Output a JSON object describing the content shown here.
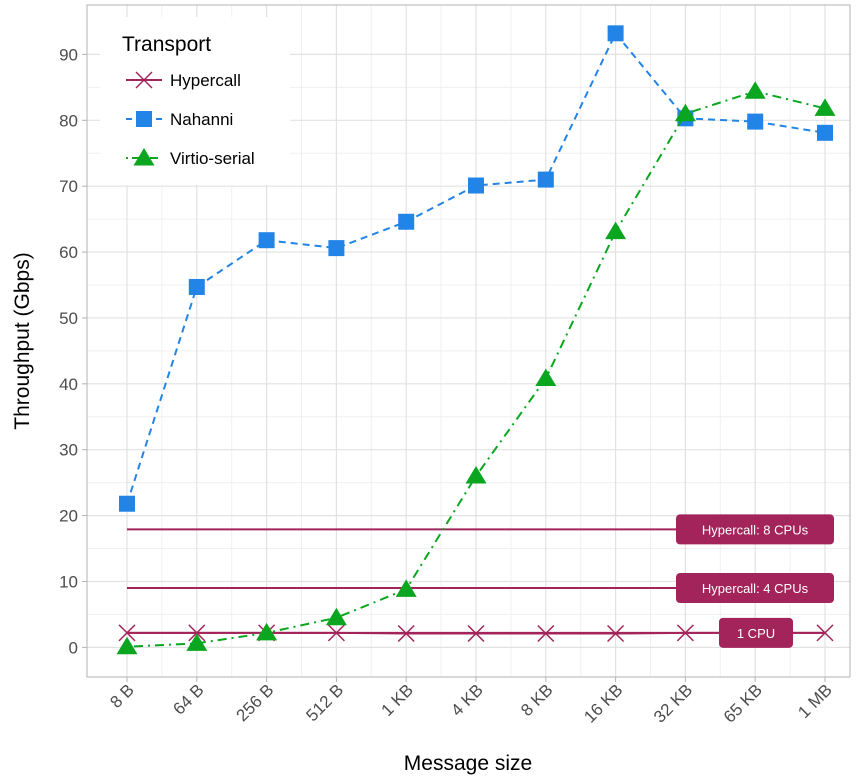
{
  "chart_data": {
    "type": "line",
    "xlabel": "Message size",
    "ylabel": "Throughput (Gbps)",
    "categories": [
      "8 B",
      "64 B",
      "256 B",
      "512 B",
      "1 KB",
      "4 KB",
      "8 KB",
      "16 KB",
      "32 KB",
      "65 KB",
      "1 MB"
    ],
    "ylim": [
      -4.5,
      97.5
    ],
    "yticks": [
      0,
      10,
      20,
      30,
      40,
      50,
      60,
      70,
      80,
      90
    ],
    "grid": true,
    "legend": {
      "title": "Transport",
      "position": "top-left"
    },
    "series": [
      {
        "name": "Hypercall",
        "color": "#a3245a",
        "dash": "solid",
        "marker": "x-icon",
        "values": [
          2.2,
          2.2,
          2.2,
          2.2,
          2.1,
          2.1,
          2.1,
          2.1,
          2.2,
          2.2,
          2.2
        ]
      },
      {
        "name": "Nahanni",
        "color": "#2284e6",
        "dash": "dashed",
        "marker": "square-icon",
        "values": [
          21.8,
          54.7,
          61.8,
          60.6,
          64.6,
          70.1,
          71.0,
          93.2,
          80.3,
          79.8,
          78.1
        ]
      },
      {
        "name": "Virtio-serial",
        "color": "#0aa61f",
        "dash": "dotdash",
        "marker": "triangle-icon",
        "values": [
          0.1,
          0.6,
          2.2,
          4.5,
          8.8,
          26.0,
          40.8,
          63.1,
          81.0,
          84.4,
          81.8
        ]
      }
    ],
    "reference_lines": [
      {
        "label": "Hypercall: 8 CPUs",
        "value": 17.9,
        "color": "#a3245a"
      },
      {
        "label": "Hypercall: 4 CPUs",
        "value": 9.0,
        "color": "#a3245a"
      },
      {
        "label": "1 CPU",
        "value": 2.2,
        "color": "#a3245a"
      }
    ]
  }
}
